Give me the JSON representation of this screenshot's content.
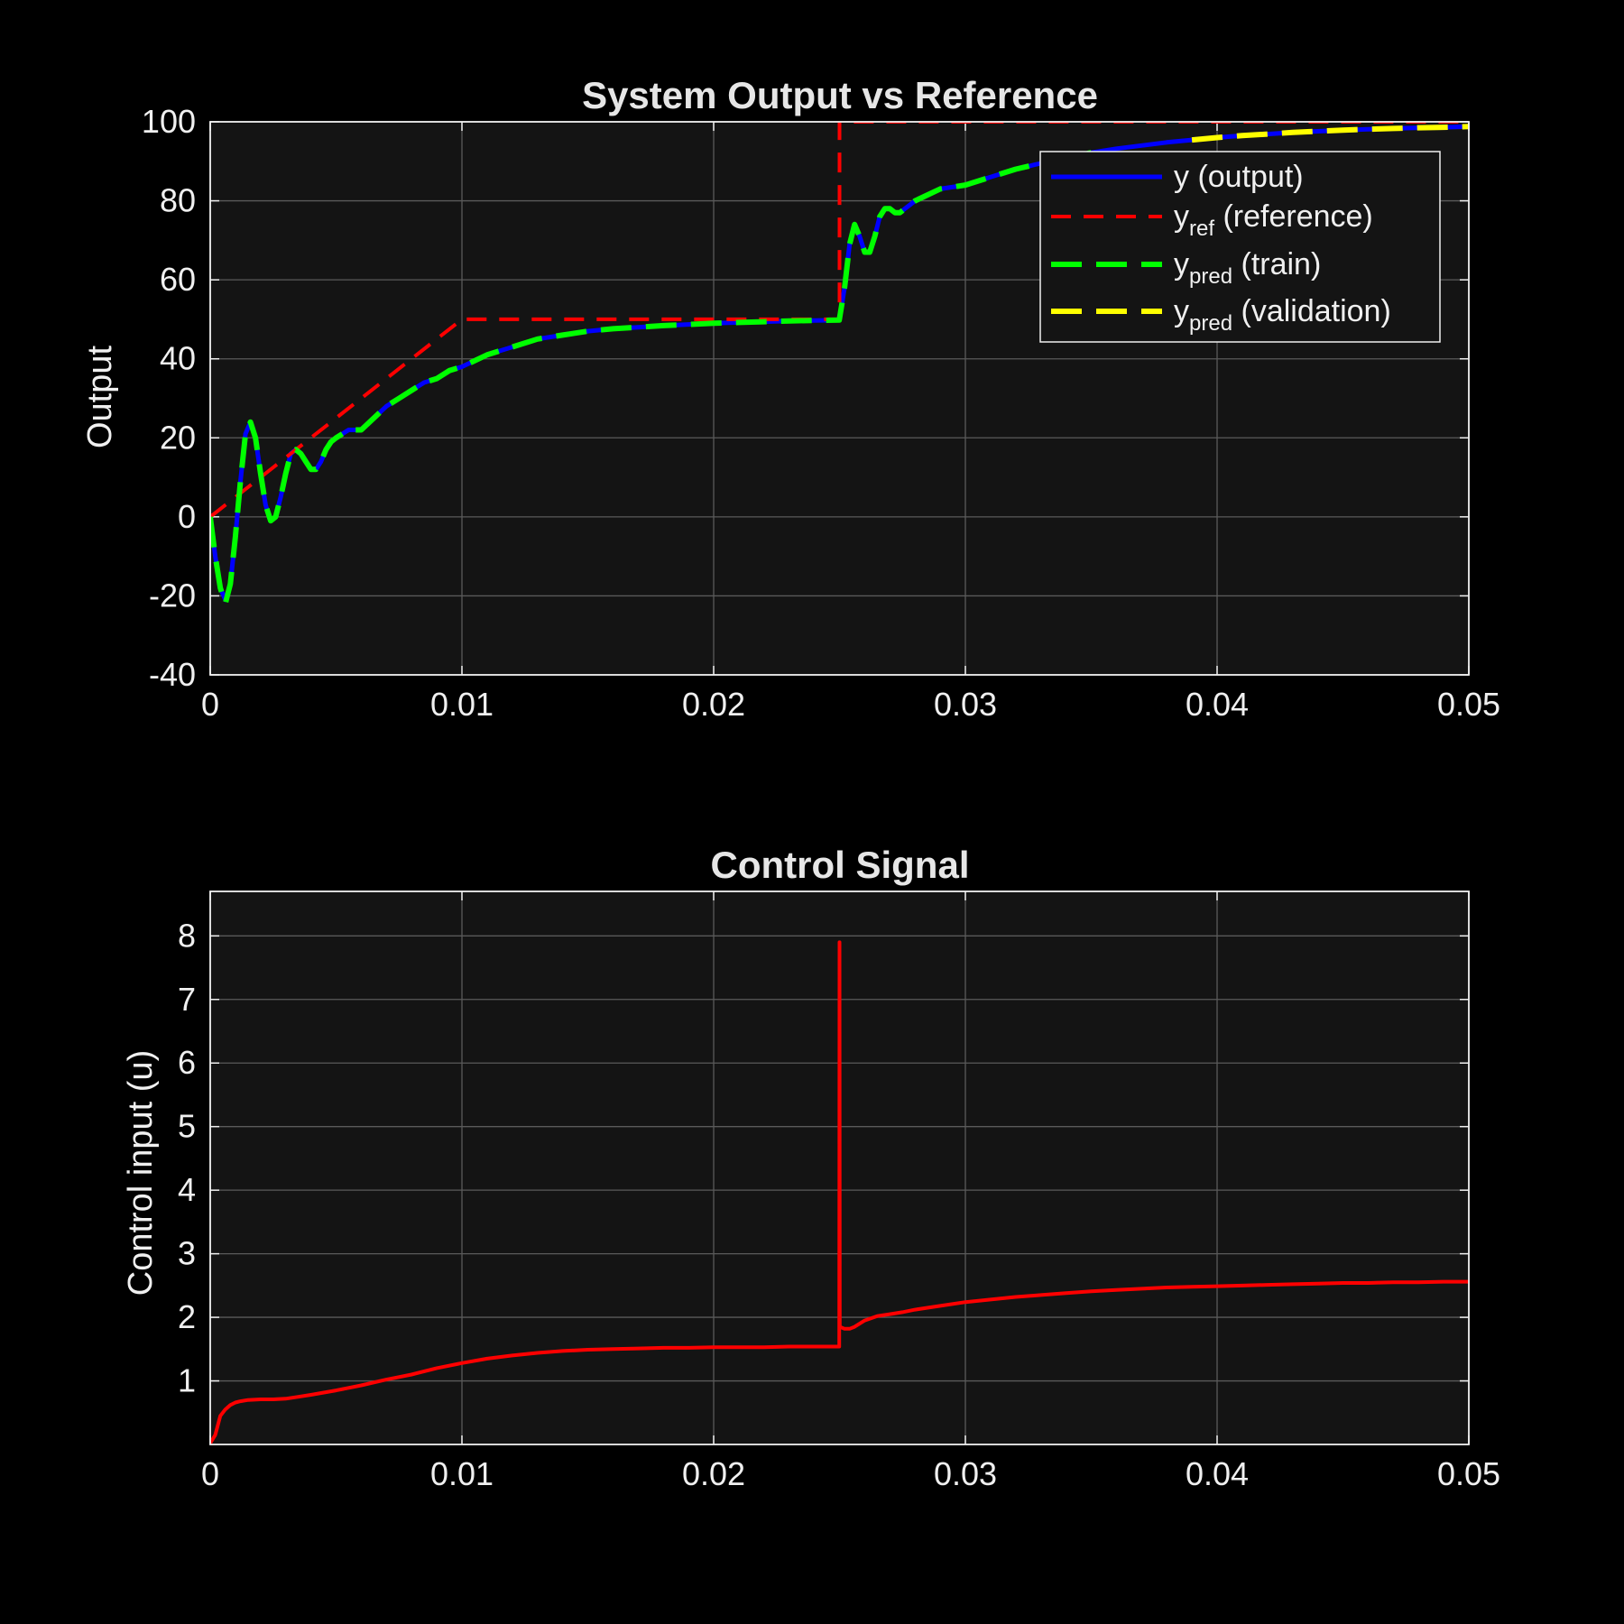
{
  "chart_data": [
    {
      "type": "line",
      "title": "System Output vs Reference",
      "xlabel": "",
      "ylabel": "Output",
      "xlim": [
        0,
        0.05
      ],
      "ylim": [
        -40,
        100
      ],
      "xticks": [
        "0",
        "0.01",
        "0.02",
        "0.03",
        "0.04",
        "0.05"
      ],
      "yticks": [
        "-40",
        "-20",
        "0",
        "20",
        "40",
        "60",
        "80",
        "100"
      ],
      "grid": true,
      "legend_position": "top-right",
      "legend": [
        {
          "main": "y",
          "sub": "",
          "suffix": " (output)"
        },
        {
          "main": "y",
          "sub": "ref",
          "suffix": "  (reference)"
        },
        {
          "main": "y",
          "sub": "pred",
          "suffix": "  (train)"
        },
        {
          "main": "y",
          "sub": "pred",
          "suffix": "  (validation)"
        }
      ],
      "series": [
        {
          "key": "output",
          "color": "#0000ff",
          "style": "solid",
          "x": [
            0,
            0.0002,
            0.0004,
            0.0006,
            0.0008,
            0.001,
            0.0012,
            0.0014,
            0.0016,
            0.0018,
            0.002,
            0.0022,
            0.0024,
            0.0026,
            0.0028,
            0.003,
            0.0032,
            0.0034,
            0.0036,
            0.0038,
            0.004,
            0.0042,
            0.0044,
            0.0046,
            0.0048,
            0.005,
            0.0055,
            0.006,
            0.0065,
            0.007,
            0.0075,
            0.008,
            0.0085,
            0.009,
            0.0095,
            0.01,
            0.011,
            0.012,
            0.013,
            0.014,
            0.015,
            0.016,
            0.017,
            0.018,
            0.019,
            0.02,
            0.021,
            0.022,
            0.023,
            0.024,
            0.02499,
            0.0252,
            0.0254,
            0.0256,
            0.0258,
            0.026,
            0.0262,
            0.0264,
            0.0266,
            0.0268,
            0.027,
            0.0272,
            0.0274,
            0.0276,
            0.0278,
            0.028,
            0.029,
            0.03,
            0.031,
            0.032,
            0.033,
            0.034,
            0.035,
            0.036,
            0.037,
            0.038,
            0.039,
            0.04,
            0.041,
            0.042,
            0.043,
            0.044,
            0.045,
            0.046,
            0.047,
            0.048,
            0.049,
            0.05
          ],
          "y": [
            0,
            -10,
            -18,
            -21,
            -17,
            -5,
            9,
            21,
            24,
            20,
            11,
            3,
            -1,
            0,
            5,
            11,
            16,
            17,
            16,
            14,
            12,
            12,
            14,
            17,
            19,
            20,
            22,
            22,
            25,
            28,
            30,
            32,
            34,
            35,
            37,
            38,
            41,
            43,
            45,
            46,
            47,
            47.6,
            48,
            48.4,
            48.7,
            49,
            49.2,
            49.4,
            49.6,
            49.7,
            49.8,
            58,
            69,
            74,
            71,
            67,
            67,
            71,
            76,
            78,
            78,
            77,
            77,
            78,
            79,
            80,
            83,
            84,
            86,
            88,
            89.5,
            91,
            92.2,
            93.2,
            94,
            94.8,
            95.4,
            96,
            96.5,
            96.9,
            97.3,
            97.6,
            97.9,
            98.1,
            98.3,
            98.5,
            98.6,
            98.8
          ]
        },
        {
          "key": "reference",
          "color": "#ff0000",
          "style": "dashed",
          "x": [
            0,
            0.01,
            0.025,
            0.025,
            0.05
          ],
          "y": [
            0,
            50,
            50,
            100,
            100
          ]
        },
        {
          "key": "train",
          "color": "#00ff00",
          "style": "dashed",
          "x": [
            0,
            0.0002,
            0.0004,
            0.0006,
            0.0008,
            0.001,
            0.0012,
            0.0014,
            0.0016,
            0.0018,
            0.002,
            0.0022,
            0.0024,
            0.0026,
            0.0028,
            0.003,
            0.0032,
            0.0034,
            0.0036,
            0.0038,
            0.004,
            0.0042,
            0.0044,
            0.0046,
            0.0048,
            0.005,
            0.0055,
            0.006,
            0.0065,
            0.007,
            0.0075,
            0.008,
            0.0085,
            0.009,
            0.0095,
            0.01,
            0.011,
            0.012,
            0.013,
            0.014,
            0.015,
            0.016,
            0.017,
            0.018,
            0.019,
            0.02,
            0.021,
            0.022,
            0.023,
            0.024,
            0.02499,
            0.0252,
            0.0254,
            0.0256,
            0.0258,
            0.026,
            0.0262,
            0.0264,
            0.0266,
            0.0268,
            0.027,
            0.0272,
            0.0274,
            0.0276,
            0.0278,
            0.028,
            0.029,
            0.03,
            0.031,
            0.032,
            0.033,
            0.034,
            0.035
          ],
          "y": [
            0,
            -10,
            -18,
            -22,
            -17,
            -5,
            9,
            21,
            24,
            20,
            11,
            3,
            -1,
            0,
            5,
            11,
            16,
            17,
            16,
            14,
            12,
            12,
            14,
            17,
            19,
            20,
            22,
            22,
            25,
            28,
            30,
            32,
            34,
            35,
            37,
            38,
            41,
            43,
            45,
            46,
            47,
            47.6,
            48,
            48.4,
            48.7,
            49,
            49.2,
            49.4,
            49.6,
            49.7,
            49.8,
            58,
            69,
            74,
            71,
            67,
            67,
            71,
            76,
            78,
            78,
            77,
            77,
            78,
            79,
            80,
            83,
            84,
            86,
            88,
            89.5,
            91,
            92.2
          ]
        },
        {
          "key": "validation",
          "color": "#ffff00",
          "style": "dashed",
          "x": [
            0.039,
            0.04,
            0.041,
            0.042,
            0.043,
            0.044,
            0.045,
            0.046,
            0.047,
            0.048,
            0.049,
            0.05
          ],
          "y": [
            95.4,
            96,
            96.5,
            96.9,
            97.3,
            97.6,
            97.9,
            98.1,
            98.3,
            98.5,
            98.6,
            98.8
          ]
        }
      ]
    },
    {
      "type": "line",
      "title": "Control Signal",
      "xlabel": "",
      "ylabel": "Control input (u)",
      "xlim": [
        0,
        0.05
      ],
      "ylim": [
        0,
        8.7
      ],
      "xticks": [
        "0",
        "0.01",
        "0.02",
        "0.03",
        "0.04",
        "0.05"
      ],
      "yticks": [
        "1",
        "2",
        "3",
        "4",
        "5",
        "6",
        "7",
        "8"
      ],
      "grid": true,
      "series": [
        {
          "key": "control",
          "color": "#ff0000",
          "style": "solid",
          "x": [
            0,
            0.0002,
            0.0004,
            0.0006,
            0.0008,
            0.001,
            0.0012,
            0.0015,
            0.002,
            0.0025,
            0.003,
            0.0035,
            0.004,
            0.005,
            0.006,
            0.007,
            0.008,
            0.009,
            0.01,
            0.011,
            0.012,
            0.013,
            0.014,
            0.015,
            0.016,
            0.017,
            0.018,
            0.019,
            0.02,
            0.021,
            0.022,
            0.023,
            0.024,
            0.02499,
            0.025,
            0.02501,
            0.0252,
            0.0254,
            0.0256,
            0.0258,
            0.026,
            0.0265,
            0.027,
            0.0275,
            0.028,
            0.029,
            0.03,
            0.031,
            0.032,
            0.033,
            0.034,
            0.035,
            0.036,
            0.037,
            0.038,
            0.039,
            0.04,
            0.041,
            0.042,
            0.043,
            0.044,
            0.045,
            0.046,
            0.047,
            0.048,
            0.049,
            0.05
          ],
          "y": [
            0.02,
            0.15,
            0.45,
            0.55,
            0.62,
            0.66,
            0.68,
            0.7,
            0.71,
            0.71,
            0.72,
            0.75,
            0.78,
            0.85,
            0.93,
            1.02,
            1.1,
            1.2,
            1.28,
            1.35,
            1.4,
            1.44,
            1.47,
            1.49,
            1.5,
            1.51,
            1.52,
            1.52,
            1.53,
            1.53,
            1.53,
            1.54,
            1.54,
            1.54,
            7.9,
            1.85,
            1.82,
            1.82,
            1.85,
            1.9,
            1.95,
            2.02,
            2.05,
            2.08,
            2.12,
            2.18,
            2.24,
            2.28,
            2.32,
            2.35,
            2.38,
            2.41,
            2.43,
            2.45,
            2.47,
            2.48,
            2.49,
            2.5,
            2.51,
            2.52,
            2.53,
            2.54,
            2.54,
            2.55,
            2.55,
            2.56,
            2.56
          ]
        }
      ]
    }
  ]
}
